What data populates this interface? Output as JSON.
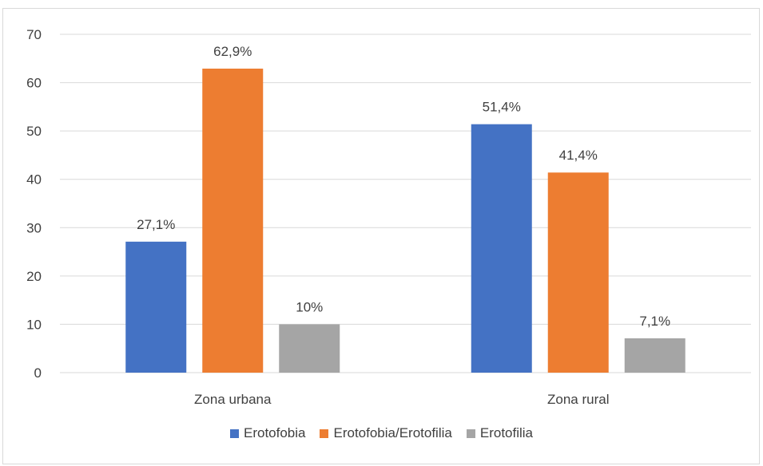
{
  "chart_data": {
    "type": "bar",
    "categories": [
      "Zona urbana",
      "Zona rural"
    ],
    "series": [
      {
        "name": "Erotofobia",
        "values": [
          27.1,
          51.4
        ],
        "labels": [
          "27,1%",
          "51,4%"
        ],
        "color": "#4472C4"
      },
      {
        "name": "Erotofobia/Erotofilia",
        "values": [
          62.9,
          41.4
        ],
        "labels": [
          "62,9%",
          "41,4%"
        ],
        "color": "#ED7D31"
      },
      {
        "name": "Erotofilia",
        "values": [
          10,
          7.1
        ],
        "labels": [
          "10%",
          "7,1%"
        ],
        "color": "#A5A5A5"
      }
    ],
    "yticks": [
      "0",
      "10",
      "20",
      "30",
      "40",
      "50",
      "60",
      "70"
    ],
    "ylim": [
      0,
      70
    ],
    "grid": true,
    "legend_position": "bottom"
  }
}
